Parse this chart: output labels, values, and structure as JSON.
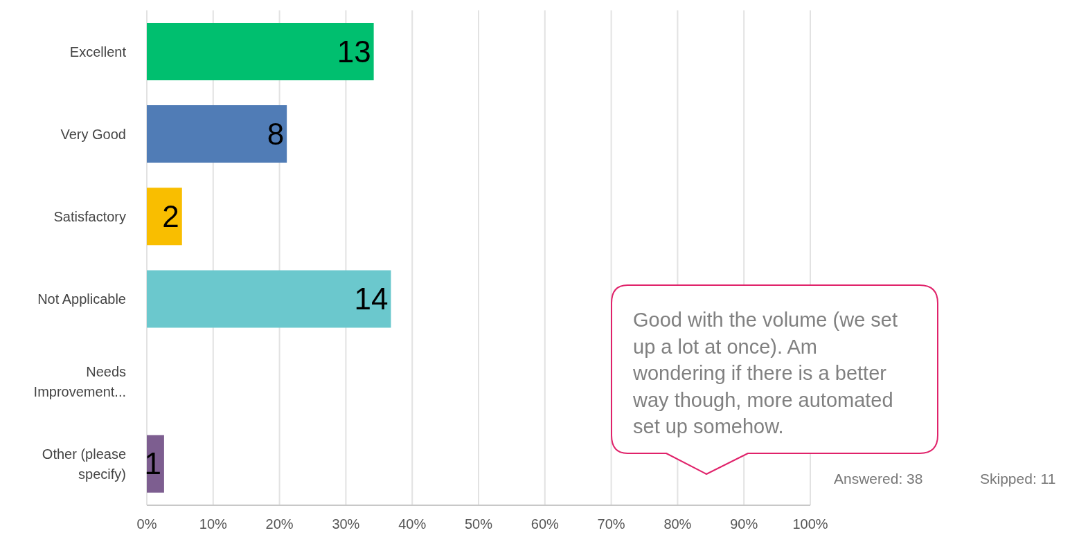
{
  "chart_data": {
    "type": "bar",
    "orientation": "horizontal",
    "categories": [
      "Excellent",
      "Very Good",
      "Satisfactory",
      "Not Applicable",
      "Needs Improvement...",
      "Other (please specify)"
    ],
    "values": [
      34.2,
      21.1,
      5.3,
      36.8,
      0,
      2.6
    ],
    "colors": [
      "#00bf6f",
      "#507cb6",
      "#f9be00",
      "#6bc8cd",
      "#a0a0a0",
      "#7d5e90"
    ],
    "xlim": [
      0,
      100
    ],
    "xticks": [
      {
        "value": 0,
        "label": "0%"
      },
      {
        "value": 10,
        "label": "10%"
      },
      {
        "value": 20,
        "label": "20%"
      },
      {
        "value": 30,
        "label": "30%"
      },
      {
        "value": 40,
        "label": "40%"
      },
      {
        "value": 50,
        "label": "50%"
      },
      {
        "value": 60,
        "label": "60%"
      },
      {
        "value": 70,
        "label": "70%"
      },
      {
        "value": 80,
        "label": "80%"
      },
      {
        "value": 90,
        "label": "90%"
      },
      {
        "value": 100,
        "label": "100%"
      }
    ],
    "grid": "x",
    "annotations": [
      "Good with the volume (we set up a lot at once). Am wondering if there is a better way though, more automated set up somehow.",
      "Answered: 38",
      "Skipped: 11",
      {
        "text": "13",
        "x": 34.2,
        "y": "Excellent"
      },
      {
        "text": "8",
        "x": 21.1,
        "y": "Very Good"
      },
      {
        "text": "2",
        "x": 5.3,
        "y": "Satisfactory"
      },
      {
        "text": "14",
        "x": 36.8,
        "y": "Not Applicable"
      },
      {
        "text": "1",
        "x": 2.6,
        "y": "Other (please specify)"
      }
    ]
  }
}
